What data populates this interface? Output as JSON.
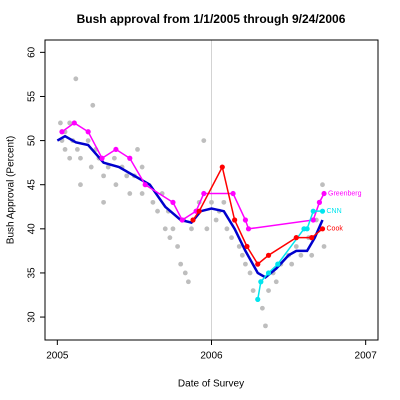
{
  "chart_data": {
    "type": "scatter",
    "title": "Bush approval from 1/1/2005 through 9/24/2006",
    "x_label": "Date of Survey",
    "y_label": "Bush Approval (Percent)",
    "xlim": [
      2004.92,
      2007.08
    ],
    "ylim": [
      27.4,
      61.4
    ],
    "xticks": [
      2005,
      2006,
      2007
    ],
    "yticks": [
      30,
      35,
      40,
      45,
      50,
      55,
      60
    ],
    "vline": 2006,
    "vline_color": "#d3d3d3",
    "series": [
      {
        "style": "points",
        "color": "#bebebe",
        "x": [
          2005.02,
          2005.03,
          2005.05,
          2005.05,
          2005.08,
          2005.08,
          2005.1,
          2005.12,
          2005.13,
          2005.15,
          2005.15,
          2005.2,
          2005.22,
          2005.23,
          2005.25,
          2005.27,
          2005.3,
          2005.3,
          2005.33,
          2005.37,
          2005.38,
          2005.42,
          2005.45,
          2005.47,
          2005.5,
          2005.52,
          2005.55,
          2005.55,
          2005.58,
          2005.62,
          2005.65,
          2005.68,
          2005.7,
          2005.72,
          2005.73,
          2005.75,
          2005.78,
          2005.8,
          2005.82,
          2005.83,
          2005.85,
          2005.87,
          2005.9,
          2005.92,
          2005.95,
          2005.97,
          2006.0,
          2006.03,
          2006.05,
          2006.08,
          2006.1,
          2006.13,
          2006.15,
          2006.18,
          2006.2,
          2006.22,
          2006.25,
          2006.27,
          2006.3,
          2006.32,
          2006.33,
          2006.35,
          2006.37,
          2006.4,
          2006.42,
          2006.45,
          2006.5,
          2006.52,
          2006.55,
          2006.58,
          2006.6,
          2006.63,
          2006.65,
          2006.68,
          2006.7,
          2006.72,
          2006.73
        ],
        "values": [
          52,
          50,
          49,
          51,
          52,
          48,
          50,
          57,
          49,
          45,
          48,
          50,
          47,
          54,
          49,
          48,
          43,
          46,
          47,
          48,
          45,
          47,
          46,
          44,
          46,
          49,
          47,
          44,
          45,
          43,
          42,
          44,
          40,
          42,
          39,
          40,
          38,
          36,
          41,
          35,
          34,
          40,
          42,
          43,
          50,
          40,
          43,
          41,
          42,
          43,
          40,
          39,
          41,
          38,
          37,
          36,
          35,
          33,
          32,
          34,
          31,
          29,
          33,
          35,
          34,
          36,
          37,
          36,
          38,
          37,
          40,
          39,
          37,
          41,
          43,
          45,
          38
        ]
      },
      {
        "style": "line",
        "color": "#0000cd",
        "x": [
          2005.0,
          2005.05,
          2005.12,
          2005.2,
          2005.3,
          2005.4,
          2005.5,
          2005.6,
          2005.7,
          2005.8,
          2005.87,
          2005.93,
          2006.0,
          2006.08,
          2006.15,
          2006.22,
          2006.3,
          2006.35,
          2006.42,
          2006.5,
          2006.55,
          2006.62,
          2006.67,
          2006.72
        ],
        "values": [
          50,
          50.5,
          49.8,
          49.5,
          47.5,
          47,
          46,
          45,
          42.5,
          41,
          40.7,
          42,
          42.3,
          42,
          40,
          37.5,
          35,
          34.5,
          35.5,
          37,
          37.5,
          37.5,
          39,
          41
        ]
      },
      {
        "style": "line-points",
        "name": "Greenberg",
        "color": "#ff00ff",
        "x": [
          2005.03,
          2005.11,
          2005.2,
          2005.29,
          2005.38,
          2005.47,
          2005.57,
          2005.75,
          2005.81,
          2005.9,
          2005.95,
          2006.14,
          2006.22,
          2006.24,
          2006.66,
          2006.7,
          2006.73
        ],
        "values": [
          51,
          52,
          51,
          48,
          49,
          48,
          45,
          43,
          41,
          42,
          44,
          44,
          41,
          40,
          41,
          43,
          44
        ]
      },
      {
        "style": "line-points",
        "name": "CNN",
        "color": "#00e5ee",
        "x": [
          2006.3,
          2006.32,
          2006.37,
          2006.43,
          2006.6,
          2006.62,
          2006.66,
          2006.72
        ],
        "values": [
          32,
          34,
          35,
          36,
          40,
          40,
          42,
          42
        ]
      },
      {
        "style": "line-points",
        "name": "Cook",
        "color": "#ff0000",
        "x": [
          2005.88,
          2005.92,
          2006.07,
          2006.15,
          2006.23,
          2006.3,
          2006.37,
          2006.55,
          2006.65,
          2006.72
        ],
        "values": [
          41,
          42,
          47,
          41,
          38,
          36,
          37,
          39,
          39,
          40
        ]
      }
    ]
  }
}
